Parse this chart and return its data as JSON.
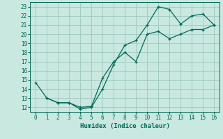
{
  "xlabel": "Humidex (Indice chaleur)",
  "background_color": "#c8e8e0",
  "grid_color": "#9dc8c0",
  "line_color": "#006858",
  "xlim": [
    -0.5,
    16.5
  ],
  "ylim": [
    11.5,
    23.5
  ],
  "xticks": [
    0,
    1,
    2,
    3,
    4,
    5,
    6,
    7,
    8,
    9,
    10,
    11,
    12,
    13,
    14,
    15,
    16
  ],
  "yticks": [
    12,
    13,
    14,
    15,
    16,
    17,
    18,
    19,
    20,
    21,
    22,
    23
  ],
  "line1_x": [
    0,
    1,
    2,
    3,
    4,
    5,
    6,
    7,
    8,
    9,
    10,
    11,
    12,
    13,
    14,
    15,
    16
  ],
  "line1_y": [
    14.7,
    13.0,
    12.5,
    12.5,
    11.8,
    12.0,
    14.0,
    16.7,
    18.8,
    19.3,
    21.0,
    23.0,
    22.7,
    21.1,
    22.0,
    22.2,
    21.0
  ],
  "line2_x": [
    1,
    2,
    3,
    4,
    5,
    6,
    7,
    8,
    9,
    10,
    11,
    12,
    13,
    14,
    15,
    16
  ],
  "line2_y": [
    13.0,
    12.5,
    12.5,
    12.0,
    12.1,
    15.2,
    17.0,
    18.0,
    17.0,
    20.0,
    20.3,
    19.5,
    20.0,
    20.5,
    20.5,
    21.0
  ],
  "tick_labelsize": 5.5,
  "xlabel_fontsize": 6.5
}
